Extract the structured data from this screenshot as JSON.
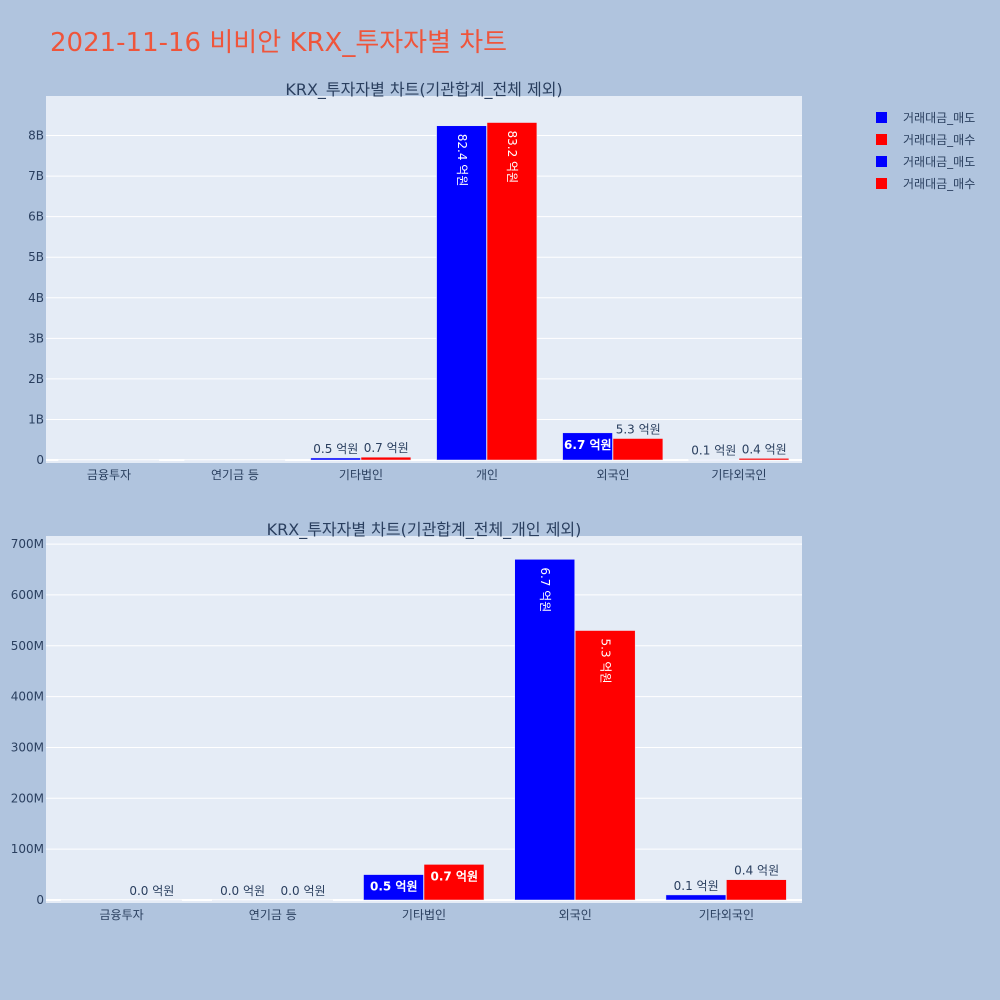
{
  "page_title": "2021-11-16 비비안 KRX_투자자별 차트",
  "legend": {
    "items": [
      {
        "label": "거래대금_매도",
        "color": "#0000ff"
      },
      {
        "label": "거래대금_매수",
        "color": "#ff0000"
      },
      {
        "label": "거래대금_매도",
        "color": "#0000ff"
      },
      {
        "label": "거래대금_매수",
        "color": "#ff0000"
      }
    ]
  },
  "chart_data": [
    {
      "type": "bar",
      "title": "KRX_투자자별 차트(기관합계_전체 제외)",
      "categories": [
        "금융투자",
        "연기금 등",
        "기타법인",
        "개인",
        "외국인",
        "기타외국인"
      ],
      "ylim": [
        0,
        8900000000
      ],
      "yticks": [
        0,
        1000000000,
        2000000000,
        3000000000,
        4000000000,
        5000000000,
        6000000000,
        7000000000,
        8000000000
      ],
      "ytick_labels": [
        "0",
        "1B",
        "2B",
        "3B",
        "4B",
        "5B",
        "6B",
        "7B",
        "8B"
      ],
      "grid": true,
      "legend_position": "top-right",
      "series": [
        {
          "name": "거래대금_매도",
          "color": "#0000ff",
          "values": [
            0,
            0,
            50000000,
            8240000000,
            670000000,
            10000000
          ],
          "labels": [
            "",
            "",
            "0.5 억원",
            "82.4 억원",
            "6.7 억원",
            "0.1 억원"
          ]
        },
        {
          "name": "거래대금_매수",
          "color": "#ff0000",
          "values": [
            0,
            0,
            70000000,
            8320000000,
            530000000,
            40000000
          ],
          "labels": [
            "",
            "",
            "0.7 억원",
            "83.2 억원",
            "5.3 억원",
            "0.4 억원"
          ]
        }
      ]
    },
    {
      "type": "bar",
      "title": "KRX_투자자별 차트(기관합계_전체_개인 제외)",
      "categories": [
        "금융투자",
        "연기금 등",
        "기타법인",
        "외국인",
        "기타외국인"
      ],
      "ylim": [
        0,
        710000000
      ],
      "yticks": [
        0,
        100000000,
        200000000,
        300000000,
        400000000,
        500000000,
        600000000,
        700000000
      ],
      "ytick_labels": [
        "0",
        "100M",
        "200M",
        "300M",
        "400M",
        "500M",
        "600M",
        "700M"
      ],
      "grid": true,
      "series": [
        {
          "name": "거래대금_매도",
          "color": "#0000ff",
          "values": [
            0,
            0,
            50000000,
            670000000,
            10000000
          ],
          "labels": [
            "",
            "0.0 억원",
            "0.5 억원",
            "6.7 억원",
            "0.1 억원"
          ]
        },
        {
          "name": "거래대금_매수",
          "color": "#ff0000",
          "values": [
            0,
            0,
            70000000,
            530000000,
            40000000
          ],
          "labels": [
            "0.0 억원",
            "0.0 억원",
            "0.7 억원",
            "5.3 억원",
            "0.4 억원"
          ]
        }
      ]
    }
  ]
}
